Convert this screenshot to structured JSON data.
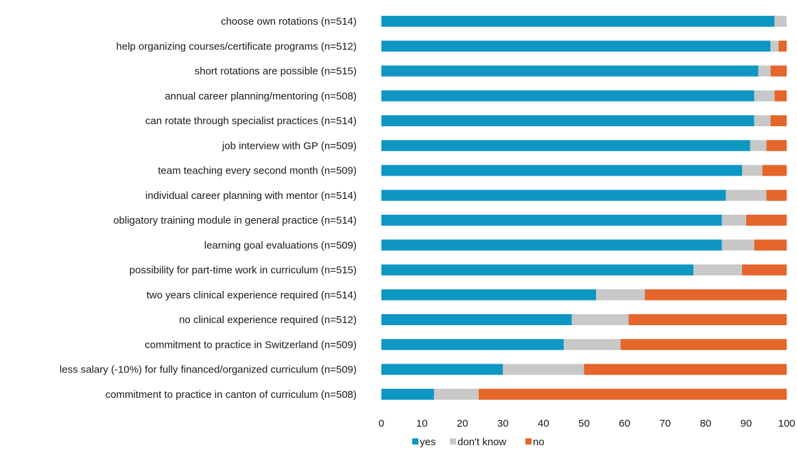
{
  "chart_data": {
    "type": "bar",
    "orientation": "horizontal",
    "stacked": true,
    "categories": [
      "choose own rotations (n=514)",
      "help organizing courses/certificate programs (n=512)",
      "short rotations are possible (n=515)",
      "annual career planning/mentoring (n=508)",
      "can rotate through specialist practices (n=514)",
      "job interview with GP (n=509)",
      "team teaching every second month (n=509)",
      "individual career planning with mentor (n=514)",
      "obligatory training module in general practice (n=514)",
      "learning goal evaluations (n=509)",
      "possibility for part-time work in curriculum (n=515)",
      "two years clinical experience required (n=514)",
      "no clinical experience required (n=512)",
      "commitment to practice in Switzerland (n=509)",
      "less salary (-10%) for fully financed/organized curriculum (n=509)",
      "commitment to practice in canton of curriculum (n=508)"
    ],
    "series": [
      {
        "name": "yes",
        "color": "#0f97c3",
        "values": [
          97,
          96,
          93,
          92,
          92,
          91,
          89,
          85,
          84,
          84,
          77,
          53,
          47,
          45,
          30,
          13
        ]
      },
      {
        "name": "don't know",
        "color": "#c8c8c8",
        "values": [
          3,
          2,
          3,
          5,
          4,
          4,
          5,
          10,
          6,
          8,
          12,
          12,
          14,
          14,
          20,
          11
        ]
      },
      {
        "name": "no",
        "color": "#e5652a",
        "values": [
          0,
          2,
          4,
          3,
          4,
          5,
          6,
          5,
          10,
          8,
          11,
          35,
          39,
          41,
          50,
          76
        ]
      }
    ],
    "xlim": [
      0,
      100
    ],
    "xticks": [
      "0",
      "10",
      "20",
      "30",
      "40",
      "50",
      "60",
      "70",
      "80",
      "90",
      "100"
    ],
    "grid": false,
    "legend_position": "bottom-center",
    "title": "",
    "xlabel": "",
    "ylabel": ""
  }
}
